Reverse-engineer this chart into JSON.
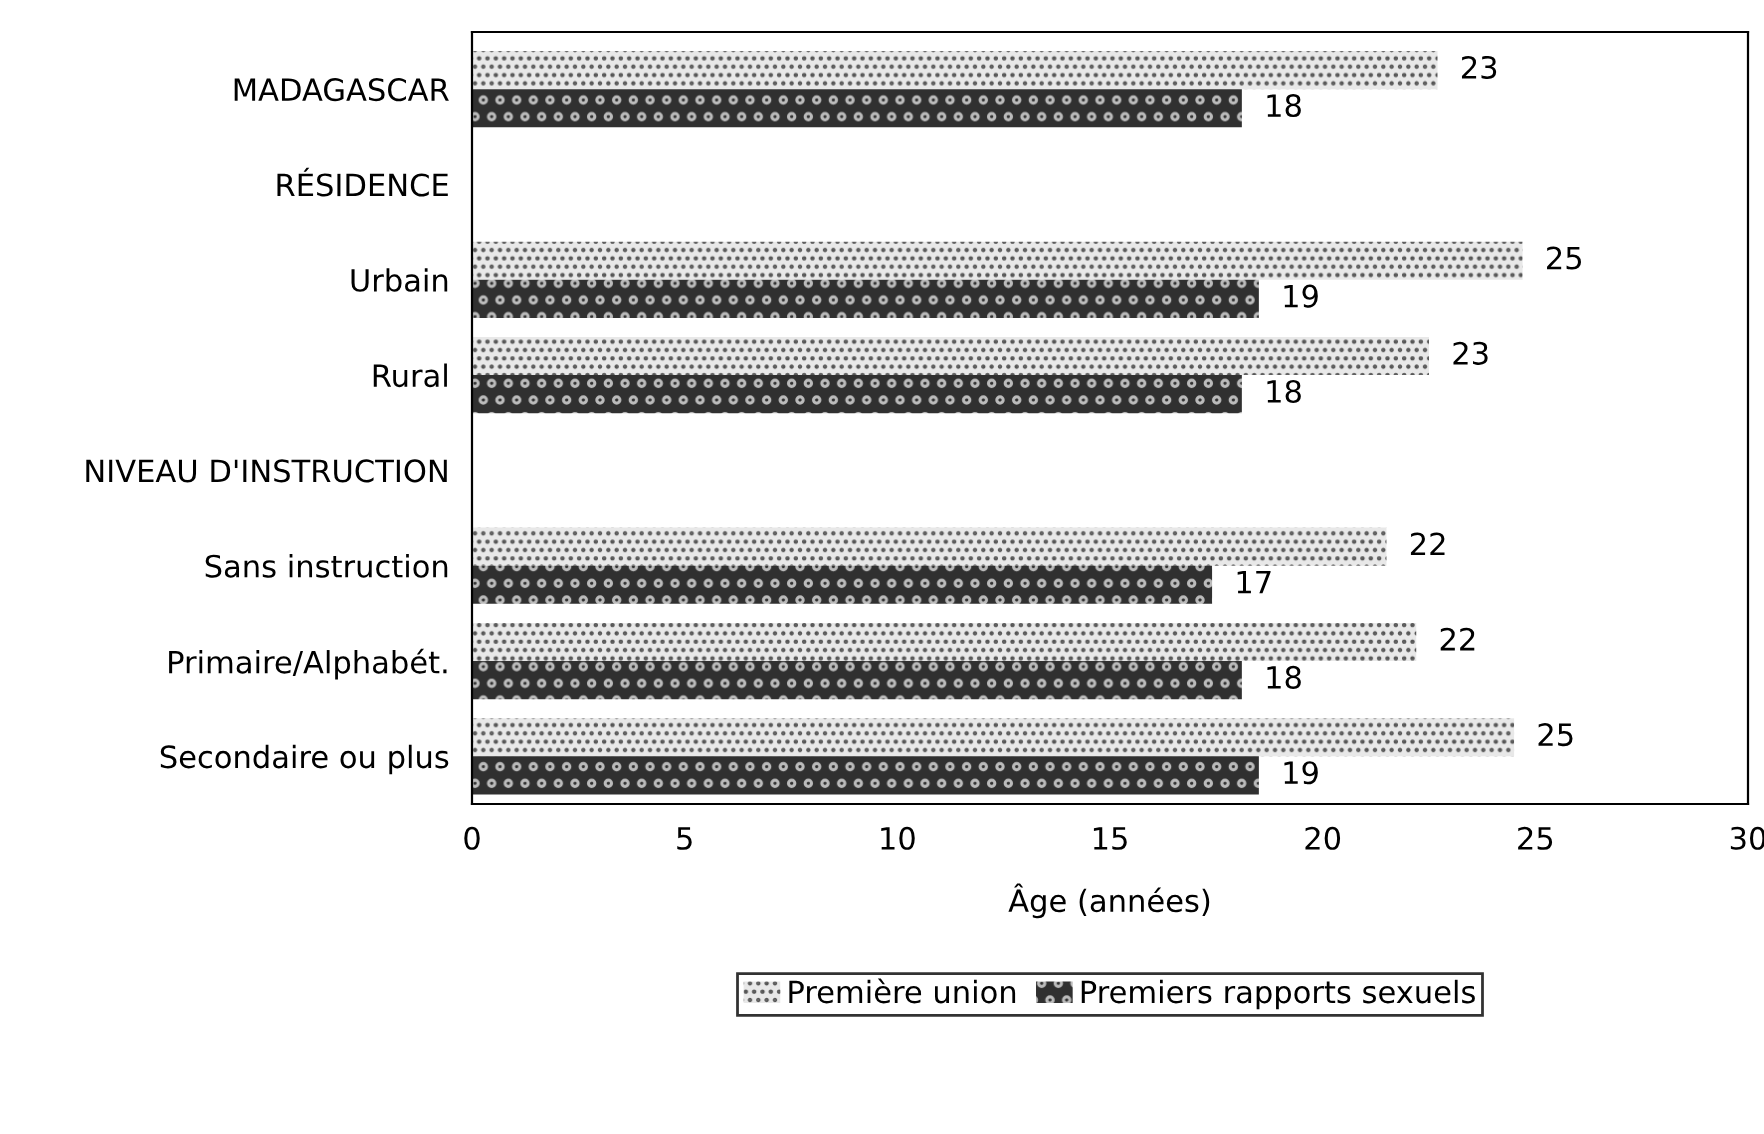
{
  "chart_data": {
    "type": "bar",
    "orientation": "horizontal",
    "xlabel": "Âge (années)",
    "categories": [
      "MADAGASCAR",
      "RÉSIDENCE",
      "Urbain",
      "Rural",
      "NIVEAU D'INSTRUCTION",
      "Sans instruction",
      "Primaire/Alphabét.",
      "Secondaire ou plus"
    ],
    "series": [
      {
        "name": "Première union",
        "color": "#e8e8e8",
        "values": [
          22.7,
          null,
          24.7,
          22.5,
          null,
          21.5,
          22.2,
          24.5
        ],
        "value_labels": [
          "23",
          null,
          "25",
          "23",
          null,
          "22",
          "22",
          "25"
        ]
      },
      {
        "name": "Premiers rapports sexuels",
        "color": "#303030",
        "values": [
          18.1,
          null,
          18.5,
          18.1,
          null,
          17.4,
          18.1,
          18.5
        ],
        "value_labels": [
          "18",
          null,
          "19",
          "18",
          null,
          "17",
          "18",
          "19"
        ]
      }
    ],
    "xlim": [
      0,
      30
    ],
    "xticks": [
      0,
      5,
      10,
      15,
      20,
      25,
      30
    ],
    "grid": false,
    "legend": "bottom"
  }
}
